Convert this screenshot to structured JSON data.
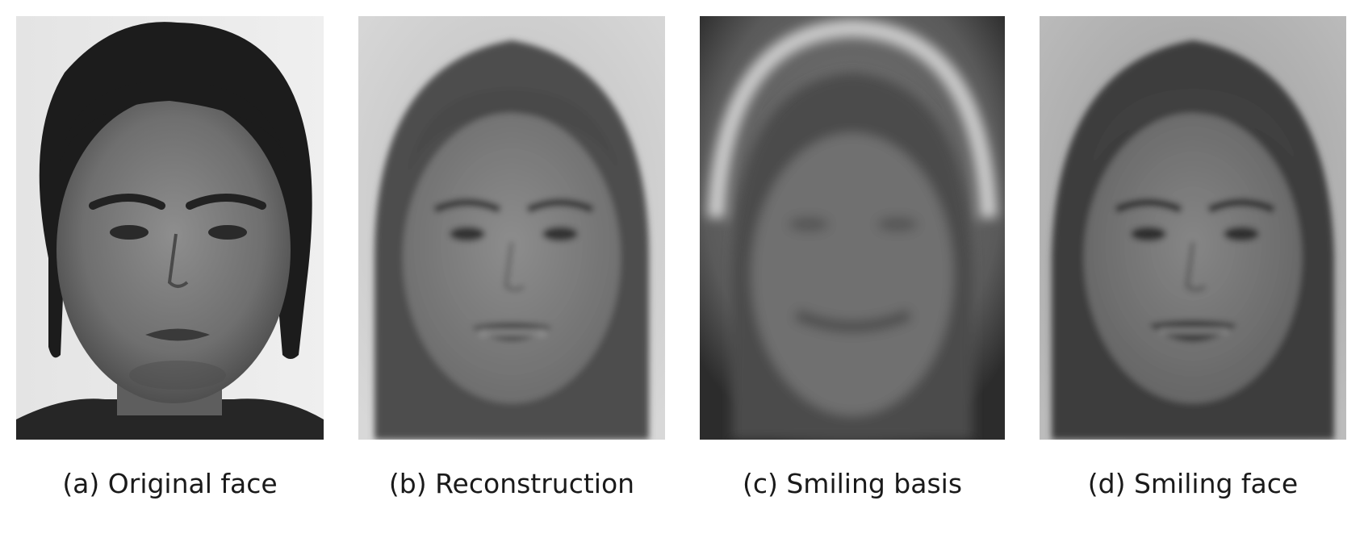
{
  "figure": {
    "panels": [
      {
        "id": "a",
        "caption": "(a) Original face"
      },
      {
        "id": "b",
        "caption": "(b) Reconstruction"
      },
      {
        "id": "c",
        "caption": "(c) Smiling basis"
      },
      {
        "id": "d",
        "caption": "(d) Smiling face"
      }
    ]
  }
}
